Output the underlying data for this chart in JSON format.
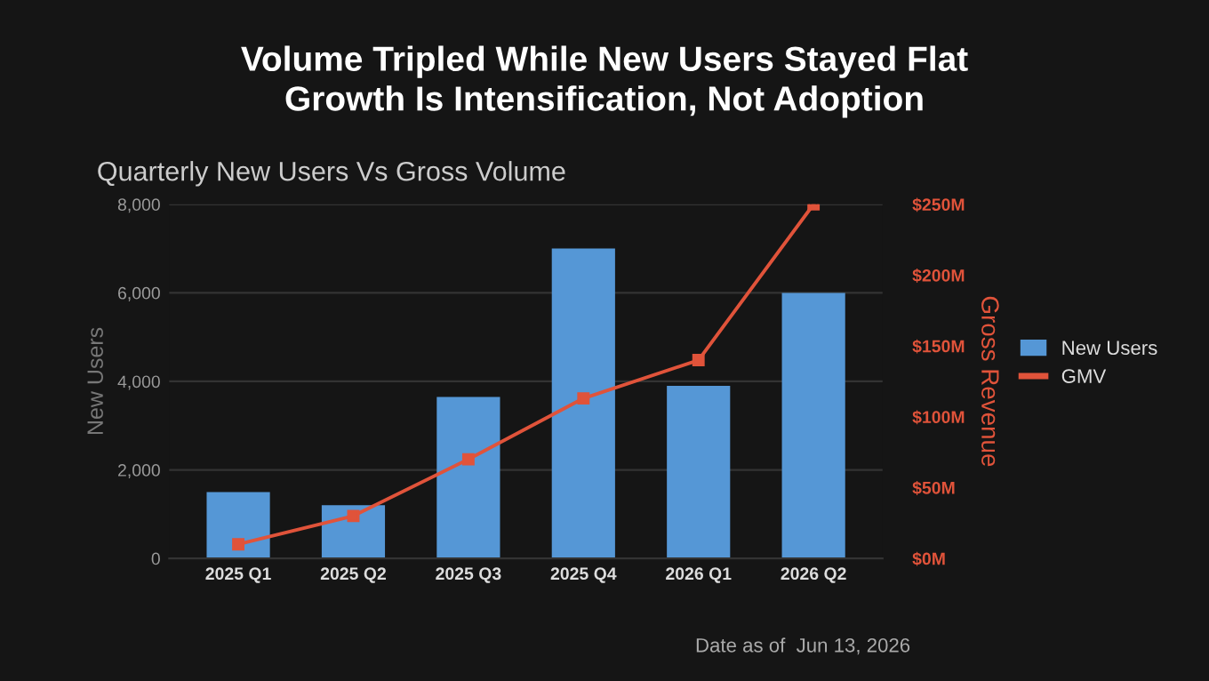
{
  "chart_data": {
    "type": "bar",
    "title": "Volume Tripled While New Users Stayed Flat\nGrowth Is Intensification, Not Adoption",
    "subtitle": "Quarterly New Users Vs Gross Volume",
    "ylabel": "New Users",
    "y2label": "Gross Revenue",
    "categories": [
      "2025 Q1",
      "2025 Q2",
      "2025 Q3",
      "2025 Q4",
      "2026 Q1",
      "2026 Q2"
    ],
    "series": [
      {
        "name": "New Users",
        "color": "#5597d6",
        "values": [
          1500,
          1200,
          3650,
          7000,
          3900,
          6000
        ]
      },
      {
        "name": "GMV",
        "type": "line",
        "axis": "y2",
        "color": "#e0533a",
        "values": [
          10,
          30,
          70,
          113,
          140,
          250
        ]
      }
    ],
    "ylim": [
      0,
      8000
    ],
    "yticks": [
      0,
      {
        "value": 2000,
        "label": "2,000"
      },
      {
        "value": 4000,
        "label": "4,000"
      },
      {
        "value": 6000,
        "label": "6,000"
      },
      {
        "value": 8000,
        "label": "8,000"
      }
    ],
    "y2lim": [
      0,
      250
    ],
    "y2ticks": [
      {
        "value": 0,
        "label": "$0M"
      },
      {
        "value": 50,
        "label": "$50M"
      },
      {
        "value": 100,
        "label": "$100M"
      },
      {
        "value": 150,
        "label": "$150M"
      },
      {
        "value": 200,
        "label": "$200M"
      },
      {
        "value": 250,
        "label": "$250M"
      }
    ],
    "grid": "y",
    "legend": "right",
    "marker": "square",
    "line_style": "solid",
    "annotations": [
      "Date as of  Jun 13, 2026"
    ]
  }
}
